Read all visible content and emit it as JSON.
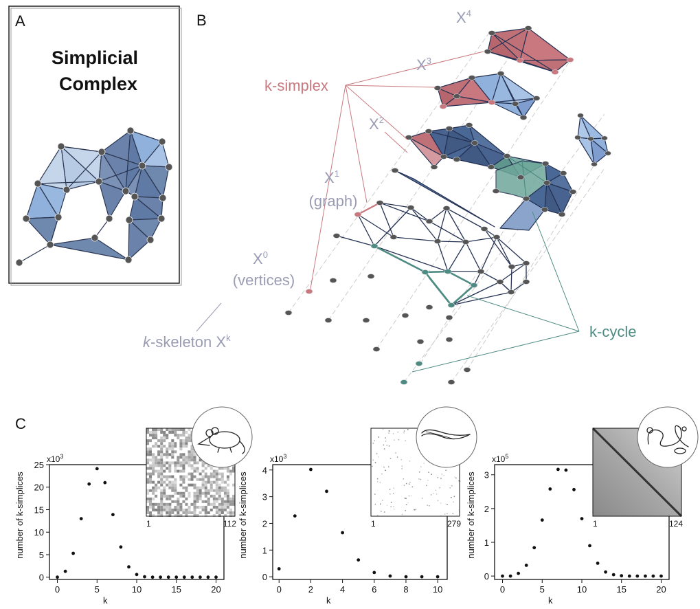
{
  "panel_a": {
    "letter": "A",
    "title_line1": "Simplicial",
    "title_line2": "Complex"
  },
  "panel_b": {
    "letter": "B",
    "x4": "X",
    "x4_sup": "4",
    "x3": "X",
    "x3_sup": "3",
    "x2": "X",
    "x2_sup": "2",
    "x1": "X",
    "x1_sup": "1",
    "x1_sub": "(graph)",
    "x0": "X",
    "x0_sup": "0",
    "x0_sub": "(vertices)",
    "k_simplex": "k-simplex",
    "k_cycle": "k-cycle",
    "skeleton_k": "k",
    "skeleton_rest": "-skeleton X",
    "skeleton_sup": "k",
    "colors": {
      "simplex": "#c9787f",
      "cycle": "#4e8b82",
      "label_gray": "#9a9cb4",
      "blue": "#4a6896"
    }
  },
  "panel_c": {
    "letter": "C",
    "chart_data": [
      {
        "type": "scatter",
        "xlabel": "k",
        "ylabel": "number of k-simplices",
        "y_multiplier": "x10",
        "y_multiplier_exp": "3",
        "xticks": [
          "0",
          "5",
          "10",
          "15",
          "20"
        ],
        "yticks": [
          "0",
          "5",
          "10",
          "15",
          "20",
          "25"
        ],
        "xlim": [
          -1,
          21
        ],
        "ylim": [
          -0.5,
          25
        ],
        "x": [
          0,
          1,
          2,
          3,
          4,
          5,
          6,
          7,
          8,
          9,
          10,
          11,
          12,
          13,
          14,
          15,
          16,
          17,
          18,
          19,
          20
        ],
        "y": [
          0,
          1.3,
          5.3,
          13,
          20.7,
          24.1,
          21,
          13.9,
          6.7,
          2.3,
          0.6,
          0.1,
          0,
          0,
          0,
          0,
          0,
          0,
          0,
          0,
          0
        ],
        "inset": {
          "start": "1",
          "end": "112",
          "icon": "mouse-icon"
        }
      },
      {
        "type": "scatter",
        "xlabel": "k",
        "ylabel": "number of k-simplices",
        "y_multiplier": "x10",
        "y_multiplier_exp": "3",
        "xticks": [
          "0",
          "2",
          "4",
          "6",
          "8",
          "10"
        ],
        "yticks": [
          "0",
          "1",
          "2",
          "3",
          "4"
        ],
        "xlim": [
          -0.4,
          10.6
        ],
        "ylim": [
          -0.1,
          4.2
        ],
        "x": [
          0,
          1,
          2,
          3,
          4,
          5,
          6,
          7,
          8,
          9,
          10
        ],
        "y": [
          0.3,
          2.28,
          4.02,
          3.2,
          1.65,
          0.63,
          0.16,
          0.03,
          0,
          0,
          0
        ],
        "inset": {
          "start": "1",
          "end": "279",
          "icon": "worm-icon"
        }
      },
      {
        "type": "scatter",
        "xlabel": "k",
        "ylabel": "number of k-simplices",
        "y_multiplier": "x10",
        "y_multiplier_exp": "5",
        "xticks": [
          "0",
          "5",
          "10",
          "15",
          "20"
        ],
        "yticks": [
          "0",
          "1",
          "2",
          "3"
        ],
        "xlim": [
          -1,
          21
        ],
        "ylim": [
          -0.1,
          3.3
        ],
        "x": [
          0,
          1,
          2,
          3,
          4,
          5,
          6,
          7,
          8,
          9,
          10,
          11,
          12,
          13,
          14,
          15,
          16,
          17,
          18,
          19,
          20
        ],
        "y": [
          0,
          0,
          0.08,
          0.32,
          0.84,
          1.66,
          2.58,
          3.16,
          3.14,
          2.56,
          1.7,
          0.9,
          0.38,
          0.12,
          0.04,
          0.01,
          0,
          0,
          0,
          0,
          0
        ],
        "inset": {
          "start": "1",
          "end": "124",
          "icon": "fly-icon"
        }
      }
    ]
  }
}
